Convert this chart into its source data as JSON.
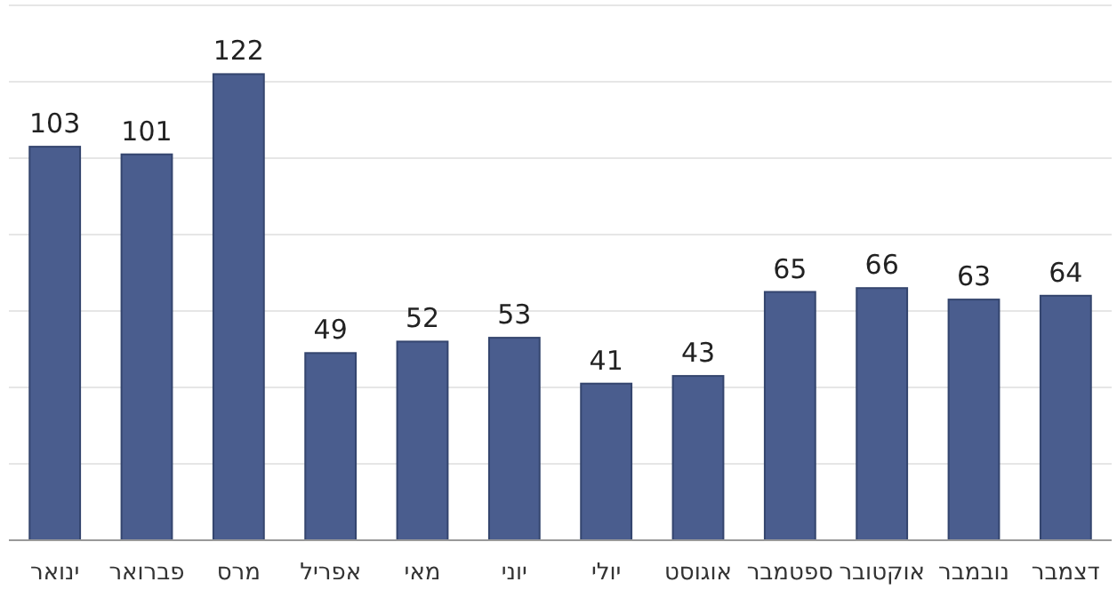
{
  "chart_data": {
    "type": "bar",
    "categories": [
      "ינואר",
      "פברואר",
      "מרס",
      "אפריל",
      "מאי",
      "יוני",
      "יולי",
      "אוגוסט",
      "ספטמבר",
      "אוקטובר",
      "נובמבר",
      "דצמבר"
    ],
    "values": [
      103,
      101,
      122,
      49,
      52,
      53,
      41,
      43,
      65,
      66,
      63,
      64
    ],
    "color": "#4a5d8e",
    "data_labels": true,
    "ylim": [
      0,
      140
    ],
    "yticks": [
      {
        "value": 0,
        "label": null
      },
      {
        "value": 20,
        "label": null
      },
      {
        "value": 40,
        "label": null
      },
      {
        "value": 60,
        "label": null
      },
      {
        "value": 80,
        "label": null
      },
      {
        "value": 100,
        "label": null
      },
      {
        "value": 120,
        "label": null
      },
      {
        "value": 140,
        "label": null
      }
    ],
    "grid": "y",
    "tick_labels": "x"
  }
}
